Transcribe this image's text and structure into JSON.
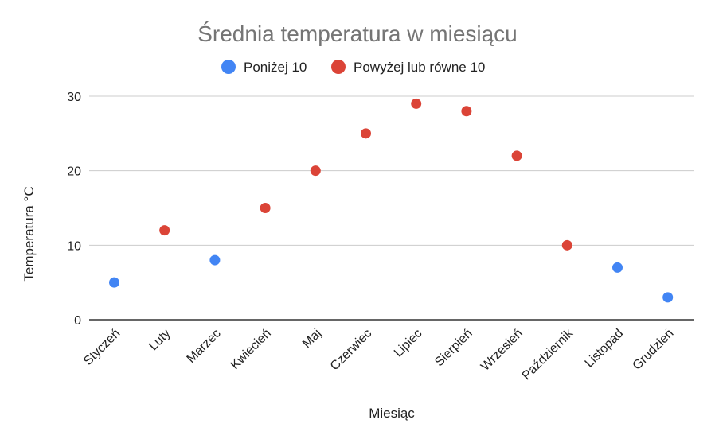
{
  "chart_data": {
    "type": "scatter",
    "title": "Średnia temperatura w miesiącu",
    "xlabel": "Miesiąc",
    "ylabel": "Temperatura °C",
    "categories": [
      "Styczeń",
      "Luty",
      "Marzec",
      "Kwiecień",
      "Maj",
      "Czerwiec",
      "Lipiec",
      "Sierpień",
      "Wrzesień",
      "Październik",
      "Listopad",
      "Grudzień"
    ],
    "ylim": [
      0,
      30
    ],
    "yticks": [
      "0",
      "10",
      "20",
      "30"
    ],
    "grid": true,
    "legend_position": "top",
    "series": [
      {
        "name": "Poniżej 10",
        "color": "#4285f4",
        "values": [
          5,
          null,
          8,
          null,
          null,
          null,
          null,
          null,
          null,
          null,
          7,
          3
        ]
      },
      {
        "name": "Powyżej lub równe 10",
        "color": "#db4437",
        "values": [
          null,
          12,
          null,
          15,
          20,
          25,
          29,
          28,
          22,
          10,
          null,
          null
        ]
      }
    ]
  }
}
